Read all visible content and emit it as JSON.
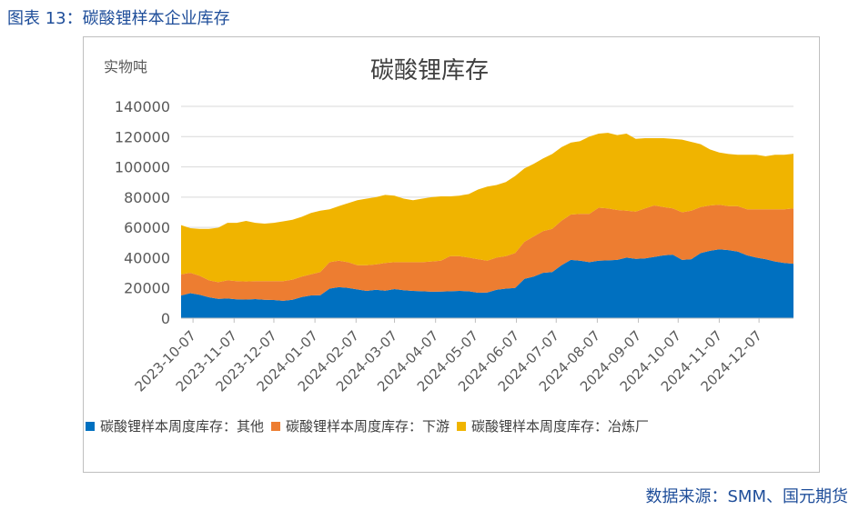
{
  "figure_title": "图表 13：碳酸锂样本企业库存",
  "source": "数据来源：SMM、国元期货",
  "chart_data": {
    "type": "area",
    "stacked": true,
    "title": "碳酸锂库存",
    "ylabel": "实物吨",
    "xlabel": "",
    "ylim": [
      0,
      140000
    ],
    "yticks": [
      0,
      20000,
      40000,
      60000,
      80000,
      100000,
      120000,
      140000
    ],
    "xtick_labels": [
      "2023-10-07",
      "2023-11-07",
      "2023-12-07",
      "2024-01-07",
      "2024-02-07",
      "2024-03-07",
      "2024-04-07",
      "2024-05-07",
      "2024-06-07",
      "2024-07-07",
      "2024-08-07",
      "2024-09-07",
      "2024-10-07",
      "2024-11-07",
      "2024-12-07"
    ],
    "legend_position": "bottom",
    "grid": "horizontal",
    "x": [
      "2023-09-28",
      "2023-10-05",
      "2023-10-12",
      "2023-10-19",
      "2023-10-26",
      "2023-11-02",
      "2023-11-09",
      "2023-11-16",
      "2023-11-23",
      "2023-11-30",
      "2023-12-07",
      "2023-12-14",
      "2023-12-21",
      "2023-12-28",
      "2024-01-04",
      "2024-01-11",
      "2024-01-18",
      "2024-01-25",
      "2024-02-01",
      "2024-02-08",
      "2024-02-15",
      "2024-02-22",
      "2024-02-29",
      "2024-03-07",
      "2024-03-14",
      "2024-03-21",
      "2024-03-28",
      "2024-04-04",
      "2024-04-11",
      "2024-04-18",
      "2024-04-25",
      "2024-05-02",
      "2024-05-09",
      "2024-05-16",
      "2024-05-23",
      "2024-05-30",
      "2024-06-06",
      "2024-06-13",
      "2024-06-20",
      "2024-06-27",
      "2024-07-04",
      "2024-07-11",
      "2024-07-18",
      "2024-07-25",
      "2024-08-01",
      "2024-08-08",
      "2024-08-15",
      "2024-08-22",
      "2024-08-29",
      "2024-09-05",
      "2024-09-12",
      "2024-09-19",
      "2024-09-26",
      "2024-10-03",
      "2024-10-10",
      "2024-10-17",
      "2024-10-24",
      "2024-10-31",
      "2024-11-07",
      "2024-11-14",
      "2024-11-21",
      "2024-11-28",
      "2024-12-05",
      "2024-12-12",
      "2024-12-19",
      "2024-12-26",
      "2025-01-02"
    ],
    "series": [
      {
        "name": "碳酸锂样本周度库存：其他",
        "color": "#0070c0",
        "values": [
          15000,
          16500,
          15500,
          13800,
          12800,
          13000,
          12500,
          12300,
          12600,
          12200,
          12000,
          11500,
          12200,
          14000,
          15000,
          15200,
          19500,
          20500,
          20000,
          19000,
          18000,
          18800,
          18200,
          19200,
          18500,
          18000,
          17800,
          17500,
          17600,
          17800,
          18000,
          17800,
          16800,
          17000,
          18800,
          19500,
          20000,
          26000,
          27500,
          30000,
          30500,
          35000,
          38500,
          38000,
          37000,
          38000,
          38200,
          38500,
          40000,
          39200,
          39500,
          40500,
          41500,
          42000,
          38500,
          39000,
          43000,
          44500,
          45500,
          45000,
          44000,
          41500,
          40000,
          39000,
          37500,
          36500,
          36000
        ]
      },
      {
        "name": "碳酸锂样本周度库存：下游",
        "color": "#ed7d31",
        "values": [
          14000,
          13500,
          12500,
          11200,
          11000,
          12000,
          12000,
          12000,
          11900,
          12300,
          12500,
          13000,
          13300,
          13500,
          14000,
          15300,
          17500,
          17500,
          17000,
          16000,
          17000,
          16700,
          18300,
          17800,
          18500,
          19000,
          19200,
          20000,
          20400,
          23200,
          23000,
          22200,
          22200,
          21000,
          21200,
          21500,
          23000,
          24500,
          26500,
          27500,
          28500,
          29500,
          30000,
          31000,
          32000,
          35000,
          34300,
          33000,
          31000,
          31300,
          33000,
          34000,
          32000,
          30500,
          31500,
          32000,
          30500,
          30000,
          29500,
          29000,
          30000,
          30500,
          32000,
          33000,
          34500,
          35500,
          36500
        ]
      },
      {
        "name": "碳酸锂样本周度库存：冶炼厂",
        "color": "#f0b400",
        "values": [
          32500,
          29500,
          31000,
          34000,
          36000,
          38000,
          38500,
          40000,
          38500,
          38000,
          38500,
          39500,
          39500,
          39500,
          40500,
          40500,
          35000,
          36000,
          39000,
          43000,
          44000,
          44500,
          45000,
          44000,
          42000,
          41000,
          42000,
          42500,
          42500,
          39500,
          40000,
          42000,
          46000,
          49000,
          48000,
          49000,
          51000,
          48500,
          48000,
          48000,
          49500,
          48500,
          47500,
          48000,
          51000,
          49000,
          50000,
          49500,
          51000,
          48000,
          46500,
          44500,
          45500,
          46000,
          48000,
          45500,
          41500,
          37000,
          34500,
          34500,
          34000,
          36000,
          36000,
          35000,
          36000,
          36000,
          36200
        ]
      }
    ]
  }
}
